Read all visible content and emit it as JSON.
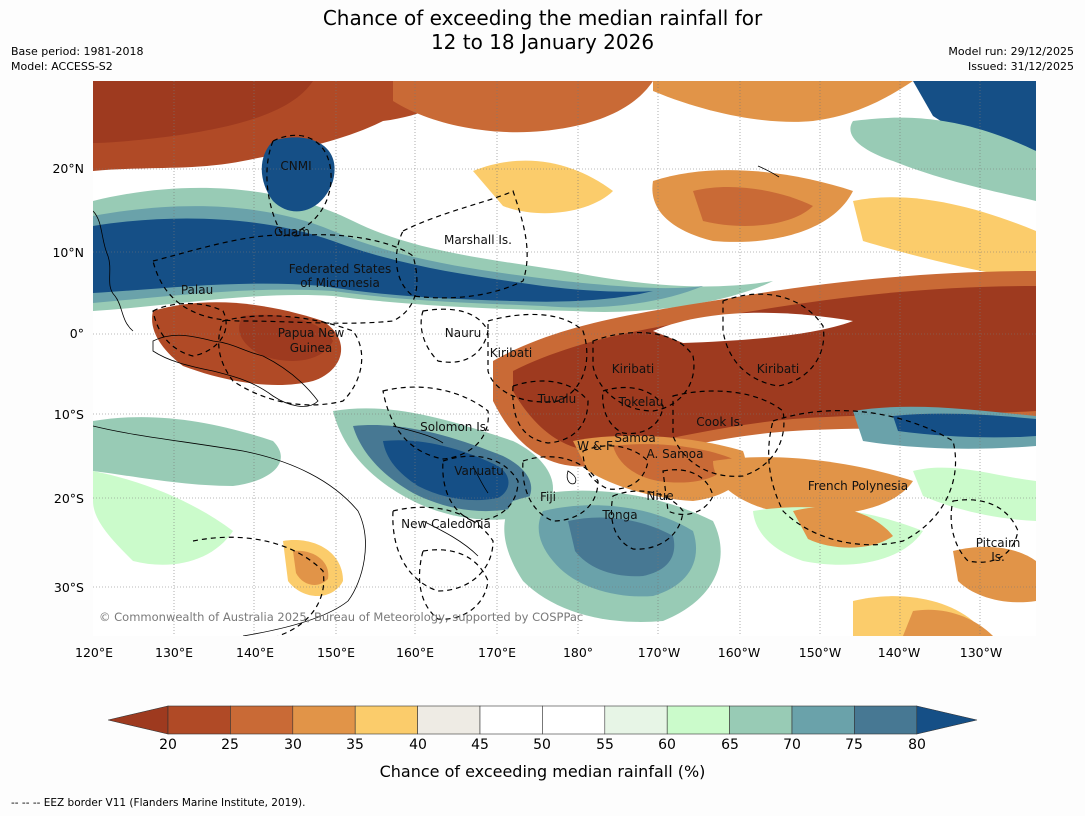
{
  "header": {
    "title_line1": "Chance of exceeding the median rainfall for",
    "title_line2": "12 to 18 January 2026",
    "base_period": "Base period: 1981-2018",
    "model": "Model: ACCESS-S2",
    "model_run": "Model run: 29/12/2025",
    "issued": "Issued: 31/12/2025"
  },
  "map": {
    "lat_labels": [
      "20°N",
      "10°N",
      "0°",
      "10°S",
      "20°S",
      "30°S"
    ],
    "lon_labels": [
      "120°E",
      "130°E",
      "140°E",
      "150°E",
      "160°E",
      "170°E",
      "180°",
      "170°W",
      "160°W",
      "150°W",
      "140°W",
      "130°W"
    ],
    "places": {
      "cnmi": "CNMI",
      "guam": "Guam",
      "marshall": "Marshall Is.",
      "fsm_1": "Federated States",
      "fsm_2": "of Micronesia",
      "palau": "Palau",
      "png_1": "Papua New",
      "png_2": "Guinea",
      "nauru": "Nauru",
      "kiribati_w": "Kiribati",
      "kiribati_c": "Kiribati",
      "kiribati_e": "Kiribati",
      "tuvalu": "Tuvalu",
      "tokelau": "Tokelau",
      "cook": "Cook Is.",
      "solomon": "Solomon Is.",
      "wf": "W & F",
      "samoa": "Samoa",
      "a_samoa": "A. Samoa",
      "vanuatu": "Vanuatu",
      "fiji": "Fiji",
      "niue": "Niue",
      "tonga": "Tonga",
      "new_caledonia": "New Caledonia",
      "french_polynesia": "French Polynesia",
      "pitcairn_1": "Pitcairn",
      "pitcairn_2": "Is."
    },
    "credit": "© Commonwealth of Australia 2025, Bureau of Meteorology, supported by COSPPac"
  },
  "colorbar": {
    "ticks": [
      "20",
      "25",
      "30",
      "35",
      "40",
      "45",
      "50",
      "55",
      "60",
      "65",
      "70",
      "75",
      "80"
    ],
    "colors": [
      "#9e3a1f",
      "#b04a26",
      "#c96a36",
      "#e19448",
      "#fbcc6b",
      "#eeebe4",
      "#ffffff",
      "#ffffff",
      "#e7f5e6",
      "#cbfbcb",
      "#98cbb5",
      "#6aa2aa",
      "#477893",
      "#154f86"
    ],
    "label": "Chance of exceeding median rainfall (%)"
  },
  "footnote": "--  --  -- EEZ border V11 (Flanders Marine Institute, 2019)."
}
